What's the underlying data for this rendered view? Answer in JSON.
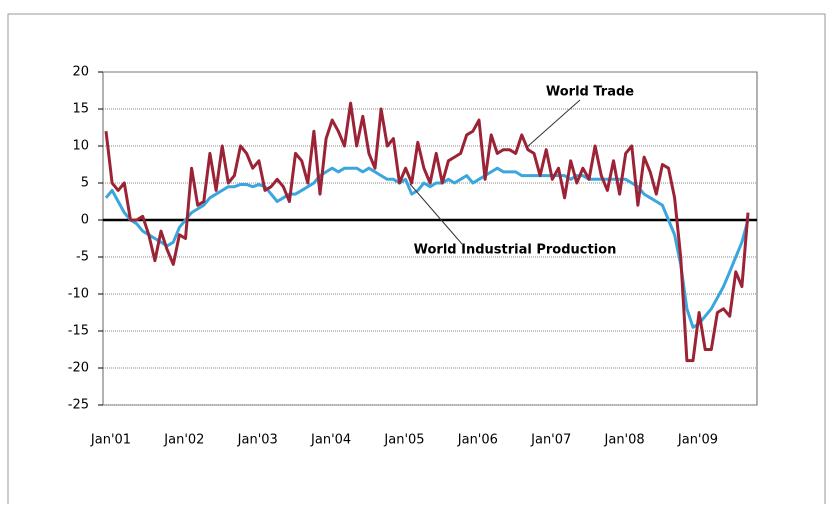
{
  "chart_data": {
    "type": "line",
    "categories": [
      "Jan'01",
      null,
      null,
      null,
      null,
      null,
      null,
      null,
      null,
      null,
      null,
      null,
      "Jan'02",
      null,
      null,
      null,
      null,
      null,
      null,
      null,
      null,
      null,
      null,
      null,
      "Jan'03",
      null,
      null,
      null,
      null,
      null,
      null,
      null,
      null,
      null,
      null,
      null,
      "Jan'04",
      null,
      null,
      null,
      null,
      null,
      null,
      null,
      null,
      null,
      null,
      null,
      "Jan'05",
      null,
      null,
      null,
      null,
      null,
      null,
      null,
      null,
      null,
      null,
      null,
      "Jan'06",
      null,
      null,
      null,
      null,
      null,
      null,
      null,
      null,
      null,
      null,
      null,
      "Jan'07",
      null,
      null,
      null,
      null,
      null,
      null,
      null,
      null,
      null,
      null,
      null,
      "Jan'08",
      null,
      null,
      null,
      null,
      null,
      null,
      null,
      null,
      null,
      null,
      null,
      "Jan'09",
      null,
      null,
      null,
      null,
      null,
      null,
      null,
      null,
      null
    ],
    "series": [
      {
        "name": "World Trade",
        "color": "#9b2335",
        "values": [
          12,
          5,
          4,
          5,
          0,
          0,
          0.5,
          -2,
          -5.5,
          -1.5,
          -4,
          -6,
          -2,
          -2.5,
          7,
          2,
          2.5,
          9,
          4,
          10,
          5,
          6,
          10,
          9,
          7,
          8,
          4,
          4.5,
          5.5,
          4.5,
          2.5,
          9,
          8,
          5,
          12,
          3.5,
          11,
          13.5,
          12,
          10,
          15.8,
          10,
          14,
          9,
          7,
          15,
          10,
          11,
          5,
          7,
          5,
          10.5,
          7,
          5,
          9,
          5,
          8,
          8.5,
          9,
          11.5,
          12,
          13.5,
          5.5,
          11.5,
          9,
          9.5,
          9.5,
          9,
          11.5,
          9.5,
          9,
          6,
          9.5,
          5.5,
          7,
          3,
          8,
          5,
          7,
          5.5,
          10,
          6,
          4,
          8,
          3.5,
          9,
          10,
          2,
          8.5,
          6.5,
          3.5,
          7.5,
          7,
          3,
          -5,
          -19,
          -19,
          -12.5,
          -17.5,
          -17.5,
          -12.5,
          -12,
          -13,
          -7,
          -9,
          1
        ]
      },
      {
        "name": "World Industrial Production",
        "color": "#3aa6dd",
        "values": [
          3,
          4,
          2.5,
          1,
          0,
          -0.5,
          -1.5,
          -2,
          -2.5,
          -3,
          -3.5,
          -3,
          -1,
          0,
          1,
          1.5,
          2,
          3,
          3.5,
          4,
          4.5,
          4.5,
          4.8,
          4.8,
          4.5,
          4.8,
          4.5,
          3.5,
          2.5,
          3,
          3.5,
          3.5,
          4,
          4.5,
          5,
          6,
          6.5,
          7,
          6.5,
          7,
          7,
          7,
          6.5,
          7,
          6.5,
          6,
          5.5,
          5.5,
          5,
          5.5,
          3.5,
          4,
          5,
          4.5,
          5,
          5,
          5.5,
          5,
          5.5,
          6,
          5,
          5.5,
          6,
          6.5,
          7,
          6.5,
          6.5,
          6.5,
          6,
          6,
          6,
          6,
          6,
          6,
          6,
          6,
          5.5,
          6,
          6,
          5.5,
          5.5,
          5.5,
          5.5,
          5.5,
          5.5,
          5.5,
          5,
          4.5,
          3.5,
          3,
          2.5,
          2,
          0,
          -2,
          -6,
          -12,
          -14.5,
          -14,
          -13,
          -12,
          -10.5,
          -9,
          -7,
          -5,
          -3,
          0
        ]
      }
    ],
    "ylim": [
      -25,
      20
    ],
    "yticks": [
      -25,
      -20,
      -15,
      -10,
      -5,
      0,
      5,
      10,
      15,
      20
    ],
    "grid": true,
    "annotations": [
      {
        "text": "World Trade"
      },
      {
        "text": "World Industrial Production"
      }
    ]
  }
}
